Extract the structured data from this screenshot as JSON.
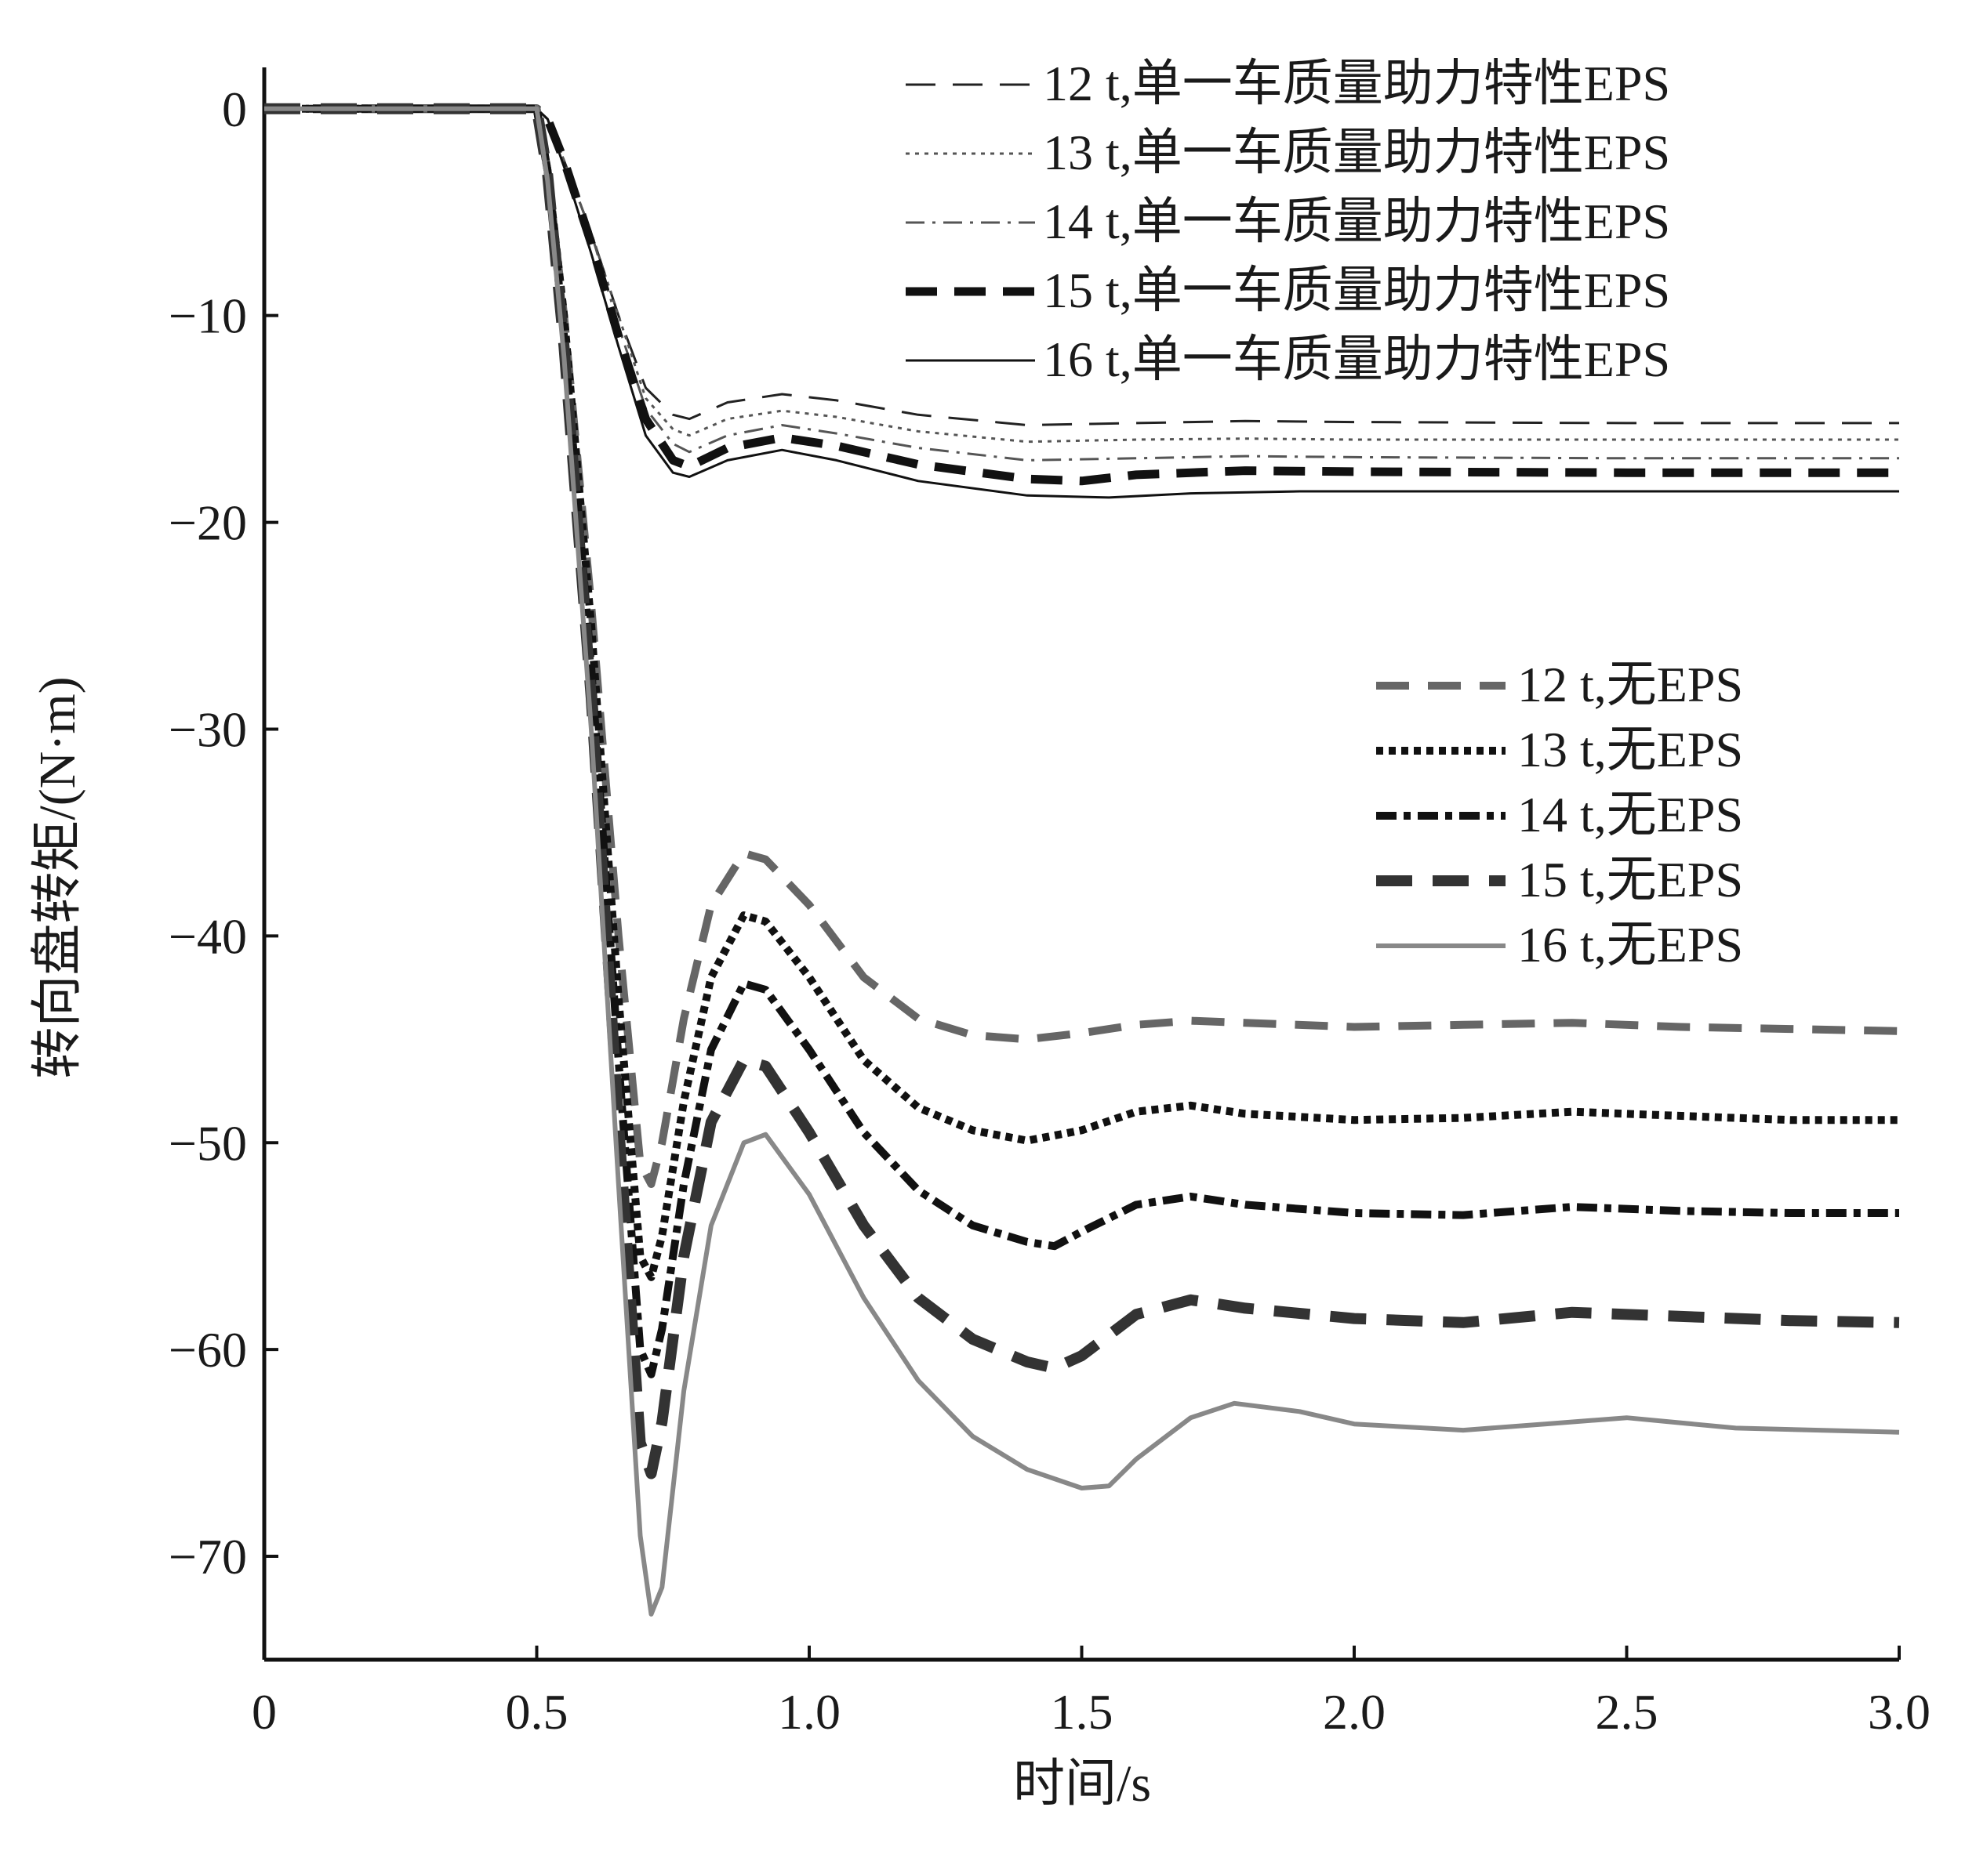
{
  "chart_data": {
    "type": "line",
    "title": "",
    "xlabel": "时间/s",
    "ylabel": "转向盘转矩/(N·m)",
    "xlim": [
      0,
      3.0
    ],
    "ylim": [
      -75,
      2
    ],
    "xticks": [
      0,
      0.5,
      1.0,
      1.5,
      2.0,
      2.5,
      3.0
    ],
    "xtick_labels": [
      "0",
      "0.5",
      "1.0",
      "1.5",
      "2.0",
      "2.5",
      "3.0"
    ],
    "yticks": [
      0,
      -10,
      -20,
      -30,
      -40,
      -50,
      -60,
      -70
    ],
    "ytick_labels": [
      "0",
      "−10",
      "−20",
      "−30",
      "−40",
      "−50",
      "−60",
      "−70"
    ],
    "grid": false,
    "legend_placement": [
      "top-right",
      "right"
    ],
    "series": [
      {
        "name": "12 t,单一车质量助力特性EPS",
        "group": "eps",
        "color": "#222222",
        "points": [
          [
            0,
            0
          ],
          [
            0.5,
            0
          ],
          [
            0.52,
            -0.5
          ],
          [
            0.55,
            -2.5
          ],
          [
            0.6,
            -6
          ],
          [
            0.65,
            -10
          ],
          [
            0.7,
            -13.5
          ],
          [
            0.75,
            -14.8
          ],
          [
            0.78,
            -15
          ],
          [
            0.85,
            -14.2
          ],
          [
            0.95,
            -13.8
          ],
          [
            1.05,
            -14.1
          ],
          [
            1.2,
            -14.8
          ],
          [
            1.4,
            -15.3
          ],
          [
            1.6,
            -15.2
          ],
          [
            1.8,
            -15.1
          ],
          [
            2.0,
            -15.15
          ],
          [
            2.5,
            -15.2
          ],
          [
            3.0,
            -15.2
          ]
        ]
      },
      {
        "name": "13 t,单一车质量助力特性EPS",
        "group": "eps",
        "color": "#555555",
        "points": [
          [
            0,
            0
          ],
          [
            0.5,
            0
          ],
          [
            0.52,
            -0.5
          ],
          [
            0.55,
            -2.5
          ],
          [
            0.6,
            -6
          ],
          [
            0.65,
            -10
          ],
          [
            0.7,
            -14
          ],
          [
            0.75,
            -15.5
          ],
          [
            0.78,
            -15.8
          ],
          [
            0.85,
            -15
          ],
          [
            0.95,
            -14.6
          ],
          [
            1.05,
            -14.9
          ],
          [
            1.2,
            -15.6
          ],
          [
            1.4,
            -16.1
          ],
          [
            1.6,
            -16
          ],
          [
            1.8,
            -15.95
          ],
          [
            2.0,
            -16
          ],
          [
            2.5,
            -16
          ],
          [
            3.0,
            -16
          ]
        ]
      },
      {
        "name": "14 t,单一车质量助力特性EPS",
        "group": "eps",
        "color": "#555555",
        "points": [
          [
            0,
            0
          ],
          [
            0.5,
            0
          ],
          [
            0.52,
            -0.5
          ],
          [
            0.55,
            -2.5
          ],
          [
            0.6,
            -6
          ],
          [
            0.65,
            -10.5
          ],
          [
            0.7,
            -14.5
          ],
          [
            0.75,
            -16.2
          ],
          [
            0.78,
            -16.6
          ],
          [
            0.85,
            -15.8
          ],
          [
            0.95,
            -15.3
          ],
          [
            1.05,
            -15.7
          ],
          [
            1.2,
            -16.4
          ],
          [
            1.4,
            -17
          ],
          [
            1.6,
            -16.9
          ],
          [
            1.8,
            -16.8
          ],
          [
            2.0,
            -16.85
          ],
          [
            2.5,
            -16.9
          ],
          [
            3.0,
            -16.9
          ]
        ]
      },
      {
        "name": "15 t,单一车质量助力特性EPS",
        "group": "eps",
        "color": "#111111",
        "points": [
          [
            0,
            0
          ],
          [
            0.5,
            0
          ],
          [
            0.52,
            -0.5
          ],
          [
            0.55,
            -2.5
          ],
          [
            0.6,
            -6.5
          ],
          [
            0.65,
            -11
          ],
          [
            0.7,
            -15
          ],
          [
            0.75,
            -17
          ],
          [
            0.78,
            -17.3
          ],
          [
            0.85,
            -16.4
          ],
          [
            0.95,
            -15.9
          ],
          [
            1.05,
            -16.3
          ],
          [
            1.2,
            -17.2
          ],
          [
            1.4,
            -17.9
          ],
          [
            1.5,
            -18
          ],
          [
            1.6,
            -17.7
          ],
          [
            1.8,
            -17.5
          ],
          [
            2.0,
            -17.55
          ],
          [
            2.5,
            -17.6
          ],
          [
            3.0,
            -17.6
          ]
        ]
      },
      {
        "name": "16 t,单一车质量助力特性EPS",
        "group": "eps",
        "color": "#111111",
        "points": [
          [
            0,
            0
          ],
          [
            0.5,
            0
          ],
          [
            0.52,
            -0.5
          ],
          [
            0.55,
            -2.8
          ],
          [
            0.6,
            -7
          ],
          [
            0.65,
            -11.5
          ],
          [
            0.7,
            -15.8
          ],
          [
            0.75,
            -17.6
          ],
          [
            0.78,
            -17.8
          ],
          [
            0.85,
            -17
          ],
          [
            0.95,
            -16.5
          ],
          [
            1.05,
            -17
          ],
          [
            1.2,
            -18
          ],
          [
            1.4,
            -18.7
          ],
          [
            1.55,
            -18.8
          ],
          [
            1.7,
            -18.6
          ],
          [
            1.9,
            -18.5
          ],
          [
            2.5,
            -18.5
          ],
          [
            3.0,
            -18.5
          ]
        ]
      },
      {
        "name": "12 t,无EPS",
        "group": "noeps",
        "color": "#666666",
        "points": [
          [
            0,
            0
          ],
          [
            0.5,
            0
          ],
          [
            0.52,
            -3
          ],
          [
            0.55,
            -10
          ],
          [
            0.6,
            -24
          ],
          [
            0.65,
            -40
          ],
          [
            0.69,
            -51
          ],
          [
            0.71,
            -52
          ],
          [
            0.73,
            -50
          ],
          [
            0.77,
            -44
          ],
          [
            0.82,
            -38.5
          ],
          [
            0.88,
            -36
          ],
          [
            0.92,
            -36.3
          ],
          [
            1.0,
            -38.5
          ],
          [
            1.1,
            -42
          ],
          [
            1.2,
            -44
          ],
          [
            1.3,
            -44.8
          ],
          [
            1.4,
            -45
          ],
          [
            1.5,
            -44.7
          ],
          [
            1.6,
            -44.3
          ],
          [
            1.7,
            -44.1
          ],
          [
            1.8,
            -44.2
          ],
          [
            2.0,
            -44.4
          ],
          [
            2.2,
            -44.3
          ],
          [
            2.4,
            -44.2
          ],
          [
            2.6,
            -44.4
          ],
          [
            2.8,
            -44.5
          ],
          [
            3.0,
            -44.6
          ]
        ]
      },
      {
        "name": "13 t,无EPS",
        "group": "noeps",
        "color": "#111111",
        "points": [
          [
            0,
            0
          ],
          [
            0.5,
            0
          ],
          [
            0.52,
            -3
          ],
          [
            0.55,
            -10
          ],
          [
            0.6,
            -25
          ],
          [
            0.65,
            -43
          ],
          [
            0.69,
            -55.5
          ],
          [
            0.71,
            -56.5
          ],
          [
            0.73,
            -54.5
          ],
          [
            0.77,
            -48
          ],
          [
            0.82,
            -42
          ],
          [
            0.88,
            -39
          ],
          [
            0.92,
            -39.3
          ],
          [
            1.0,
            -42
          ],
          [
            1.1,
            -46
          ],
          [
            1.2,
            -48.3
          ],
          [
            1.3,
            -49.4
          ],
          [
            1.4,
            -49.9
          ],
          [
            1.5,
            -49.4
          ],
          [
            1.6,
            -48.5
          ],
          [
            1.7,
            -48.2
          ],
          [
            1.8,
            -48.6
          ],
          [
            2.0,
            -48.9
          ],
          [
            2.2,
            -48.8
          ],
          [
            2.4,
            -48.5
          ],
          [
            2.6,
            -48.7
          ],
          [
            2.8,
            -48.9
          ],
          [
            3.0,
            -48.9
          ]
        ]
      },
      {
        "name": "14 t,无EPS",
        "group": "noeps",
        "color": "#111111",
        "points": [
          [
            0,
            0
          ],
          [
            0.5,
            0
          ],
          [
            0.52,
            -3
          ],
          [
            0.55,
            -11
          ],
          [
            0.6,
            -27
          ],
          [
            0.65,
            -46
          ],
          [
            0.69,
            -60
          ],
          [
            0.71,
            -61.2
          ],
          [
            0.73,
            -59
          ],
          [
            0.77,
            -52
          ],
          [
            0.82,
            -45.5
          ],
          [
            0.88,
            -42.3
          ],
          [
            0.92,
            -42.6
          ],
          [
            1.0,
            -45.5
          ],
          [
            1.1,
            -49.5
          ],
          [
            1.2,
            -52.3
          ],
          [
            1.3,
            -54
          ],
          [
            1.4,
            -54.8
          ],
          [
            1.45,
            -55
          ],
          [
            1.5,
            -54.3
          ],
          [
            1.6,
            -53
          ],
          [
            1.7,
            -52.6
          ],
          [
            1.8,
            -53
          ],
          [
            2.0,
            -53.4
          ],
          [
            2.2,
            -53.5
          ],
          [
            2.4,
            -53.1
          ],
          [
            2.6,
            -53.3
          ],
          [
            2.8,
            -53.4
          ],
          [
            3.0,
            -53.4
          ]
        ]
      },
      {
        "name": "15 t,无EPS",
        "group": "noeps",
        "color": "#333333",
        "points": [
          [
            0,
            0
          ],
          [
            0.5,
            0
          ],
          [
            0.52,
            -3.2
          ],
          [
            0.55,
            -11.5
          ],
          [
            0.6,
            -28.5
          ],
          [
            0.65,
            -49
          ],
          [
            0.69,
            -64.5
          ],
          [
            0.71,
            -66
          ],
          [
            0.73,
            -63.5
          ],
          [
            0.77,
            -55.5
          ],
          [
            0.82,
            -49
          ],
          [
            0.88,
            -46
          ],
          [
            0.92,
            -46.3
          ],
          [
            1.0,
            -49.5
          ],
          [
            1.1,
            -54
          ],
          [
            1.2,
            -57.5
          ],
          [
            1.3,
            -59.5
          ],
          [
            1.4,
            -60.6
          ],
          [
            1.45,
            -60.9
          ],
          [
            1.5,
            -60.3
          ],
          [
            1.6,
            -58.3
          ],
          [
            1.7,
            -57.6
          ],
          [
            1.8,
            -58
          ],
          [
            2.0,
            -58.5
          ],
          [
            2.2,
            -58.7
          ],
          [
            2.4,
            -58.2
          ],
          [
            2.6,
            -58.4
          ],
          [
            2.8,
            -58.6
          ],
          [
            3.0,
            -58.7
          ]
        ]
      },
      {
        "name": "16 t,无EPS",
        "group": "noeps",
        "color": "#888888",
        "points": [
          [
            0,
            0
          ],
          [
            0.5,
            0
          ],
          [
            0.52,
            -3.5
          ],
          [
            0.55,
            -12
          ],
          [
            0.6,
            -30
          ],
          [
            0.65,
            -52
          ],
          [
            0.69,
            -69
          ],
          [
            0.71,
            -72.8
          ],
          [
            0.73,
            -71.5
          ],
          [
            0.77,
            -62
          ],
          [
            0.82,
            -54
          ],
          [
            0.88,
            -50
          ],
          [
            0.92,
            -49.6
          ],
          [
            1.0,
            -52.5
          ],
          [
            1.1,
            -57.5
          ],
          [
            1.2,
            -61.5
          ],
          [
            1.3,
            -64.2
          ],
          [
            1.4,
            -65.8
          ],
          [
            1.5,
            -66.7
          ],
          [
            1.55,
            -66.6
          ],
          [
            1.6,
            -65.3
          ],
          [
            1.7,
            -63.3
          ],
          [
            1.78,
            -62.6
          ],
          [
            1.9,
            -63
          ],
          [
            2.0,
            -63.6
          ],
          [
            2.2,
            -63.9
          ],
          [
            2.35,
            -63.6
          ],
          [
            2.5,
            -63.3
          ],
          [
            2.7,
            -63.8
          ],
          [
            3.0,
            -64
          ]
        ]
      }
    ]
  }
}
